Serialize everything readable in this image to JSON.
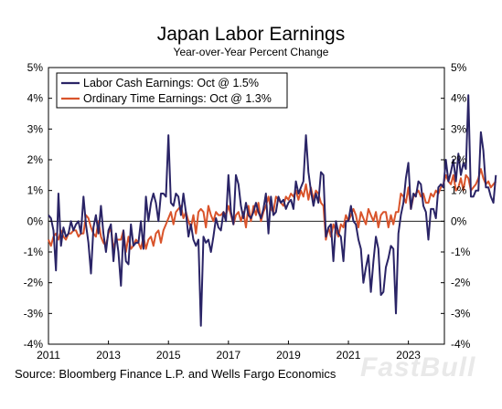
{
  "title": "Japan Labor Earnings",
  "subtitle": "Year-over-Year Percent Change",
  "source": "Source: Bloomberg Finance L.P. and Wells Fargo Economics",
  "watermark": "FastBull",
  "chart_data": {
    "type": "line",
    "title": "Japan Labor Earnings",
    "subtitle": "Year-over-Year Percent Change",
    "xlabel": "",
    "ylabel": "",
    "xlim": [
      2011,
      2024.2
    ],
    "ylim": [
      -4,
      5
    ],
    "y_ticks": [
      "5%",
      "4%",
      "3%",
      "2%",
      "1%",
      "0%",
      "-1%",
      "-2%",
      "-3%",
      "-4%"
    ],
    "y_tick_values": [
      5,
      4,
      3,
      2,
      1,
      0,
      -1,
      -2,
      -3,
      -4
    ],
    "x_ticks": [
      "2011",
      "2013",
      "2015",
      "2017",
      "2019",
      "2021",
      "2023"
    ],
    "x_tick_values": [
      2011,
      2013,
      2015,
      2017,
      2019,
      2021,
      2023
    ],
    "grid": false,
    "zero_line": true,
    "legend_position": "top-left",
    "series": [
      {
        "name": "Labor Cash Earnings: Oct @ 1.5%",
        "color": "#2a2466",
        "values": [
          0.2,
          0.1,
          -0.3,
          -1.6,
          0.9,
          -0.8,
          -0.2,
          -0.5,
          -0.4,
          0.0,
          -0.3,
          -0.1,
          0.0,
          -0.4,
          0.8,
          -0.1,
          -0.7,
          -1.7,
          -0.2,
          0.2,
          -0.4,
          0.5,
          -0.4,
          -1.0,
          -0.3,
          -0.1,
          -1.3,
          -0.4,
          -1.0,
          -2.1,
          -0.3,
          -1.3,
          -1.4,
          -0.1,
          -0.8,
          -0.7,
          -0.7,
          0.0,
          -0.9,
          0.8,
          0.0,
          0.6,
          0.9,
          0.6,
          0.0,
          0.9,
          0.9,
          0.8,
          2.8,
          0.6,
          0.5,
          0.9,
          0.8,
          0.2,
          0.9,
          0.3,
          -0.5,
          -0.1,
          -0.6,
          -0.8,
          -0.6,
          -3.4,
          -0.5,
          -0.7,
          -0.6,
          -1.0,
          -0.5,
          0.1,
          -0.2,
          -0.3,
          0.3,
          0.0,
          1.5,
          0.3,
          -0.1,
          1.5,
          1.2,
          0.5,
          0.1,
          0.6,
          0.2,
          0.1,
          0.3,
          0.6,
          0.3,
          0.1,
          0.4,
          0.9,
          -0.4,
          0.8,
          0.2,
          0.3,
          0.8,
          0.6,
          0.7,
          0.4,
          0.6,
          0.7,
          0.4,
          1.3,
          0.9,
          1.1,
          1.3,
          2.8,
          1.6,
          1.0,
          0.5,
          0.9,
          0.6,
          1.6,
          1.5,
          -0.5,
          -0.2,
          -0.1,
          -1.3,
          0.0,
          -0.4,
          -0.5,
          -1.3,
          0.0,
          0.0,
          0.5,
          0.0,
          -0.1,
          -0.6,
          -0.9,
          -2.0,
          -1.5,
          -1.1,
          -2.3,
          -1.3,
          -0.5,
          -0.9,
          -2.4,
          -2.3,
          -1.5,
          -1.2,
          -0.8,
          -0.9,
          -3.0,
          -0.4,
          0.2,
          0.6,
          1.4,
          1.9,
          0.4,
          0.9,
          0.8,
          1.3,
          1.2,
          0.5,
          0.3,
          -0.6,
          0.4,
          0.4,
          0.1,
          1.1,
          1.2,
          1.1,
          2.0,
          1.3,
          1.6,
          2.0,
          1.3,
          2.2,
          1.5,
          1.9,
          1.7,
          4.1,
          0.8,
          0.8,
          1.0,
          1.0,
          2.9,
          2.3,
          1.1,
          1.1,
          0.8,
          0.6,
          1.5
        ]
      },
      {
        "name": "Ordinary Time Earnings: Oct @ 1.3%",
        "color": "#d9542b",
        "values": [
          -0.6,
          -0.8,
          -0.5,
          -0.4,
          -0.6,
          -0.3,
          -0.5,
          -0.6,
          -0.4,
          -0.4,
          -0.3,
          -0.3,
          -0.5,
          -0.4,
          -0.4,
          0.2,
          0.1,
          -0.2,
          -0.4,
          -0.5,
          0.0,
          -0.5,
          -0.7,
          -0.8,
          -0.4,
          -0.2,
          -0.9,
          -0.6,
          -0.6,
          -0.6,
          -0.3,
          -1.0,
          -0.5,
          -0.9,
          -0.8,
          -0.6,
          -0.7,
          -0.9,
          -0.5,
          -0.9,
          -0.6,
          -0.5,
          -0.8,
          -0.4,
          -0.3,
          -0.7,
          -0.3,
          -0.1,
          0.1,
          0.3,
          -0.1,
          0.3,
          0.4,
          0.5,
          0.1,
          0.3,
          0.0,
          -0.2,
          0.2,
          -0.4,
          0.3,
          0.4,
          0.3,
          -0.2,
          0.5,
          0.2,
          0.0,
          0.3,
          0.2,
          0.2,
          0.3,
          0.2,
          0.5,
          0.2,
          -0.1,
          0.2,
          0.3,
          0.0,
          0.3,
          -0.2,
          0.5,
          0.0,
          0.5,
          0.2,
          0.6,
          0.0,
          0.3,
          0.5,
          0.8,
          0.4,
          0.3,
          0.8,
          0.7,
          0.6,
          0.5,
          0.8,
          0.7,
          0.9,
          0.8,
          1.0,
          0.7,
          1.0,
          0.8,
          1.2,
          0.7,
          1.1,
          0.7,
          1.0,
          0.9,
          0.6,
          0.5,
          -0.6,
          -0.2,
          -0.5,
          -0.1,
          -0.3,
          -0.5,
          -0.1,
          -0.2,
          0.2,
          0.0,
          0.2,
          0.4,
          0.2,
          -0.2,
          0.3,
          0.1,
          -0.1,
          0.4,
          0.2,
          0.0,
          0.3,
          -0.2,
          0.2,
          0.3,
          0.3,
          -0.2,
          0.2,
          -0.1,
          0.3,
          0.3,
          0.9,
          0.8,
          0.6,
          1.1,
          0.4,
          0.8,
          0.9,
          1.0,
          0.8,
          0.9,
          0.6,
          0.6,
          0.9,
          0.8,
          1.0,
          0.9,
          1.1,
          1.2,
          1.5,
          1.3,
          1.2,
          1.5,
          1.0,
          1.1,
          1.4,
          1.0,
          1.5,
          1.4,
          1.0,
          1.1,
          1.2,
          1.4,
          1.7,
          1.4,
          1.2,
          1.3,
          1.1,
          1.2,
          1.3
        ]
      }
    ]
  }
}
